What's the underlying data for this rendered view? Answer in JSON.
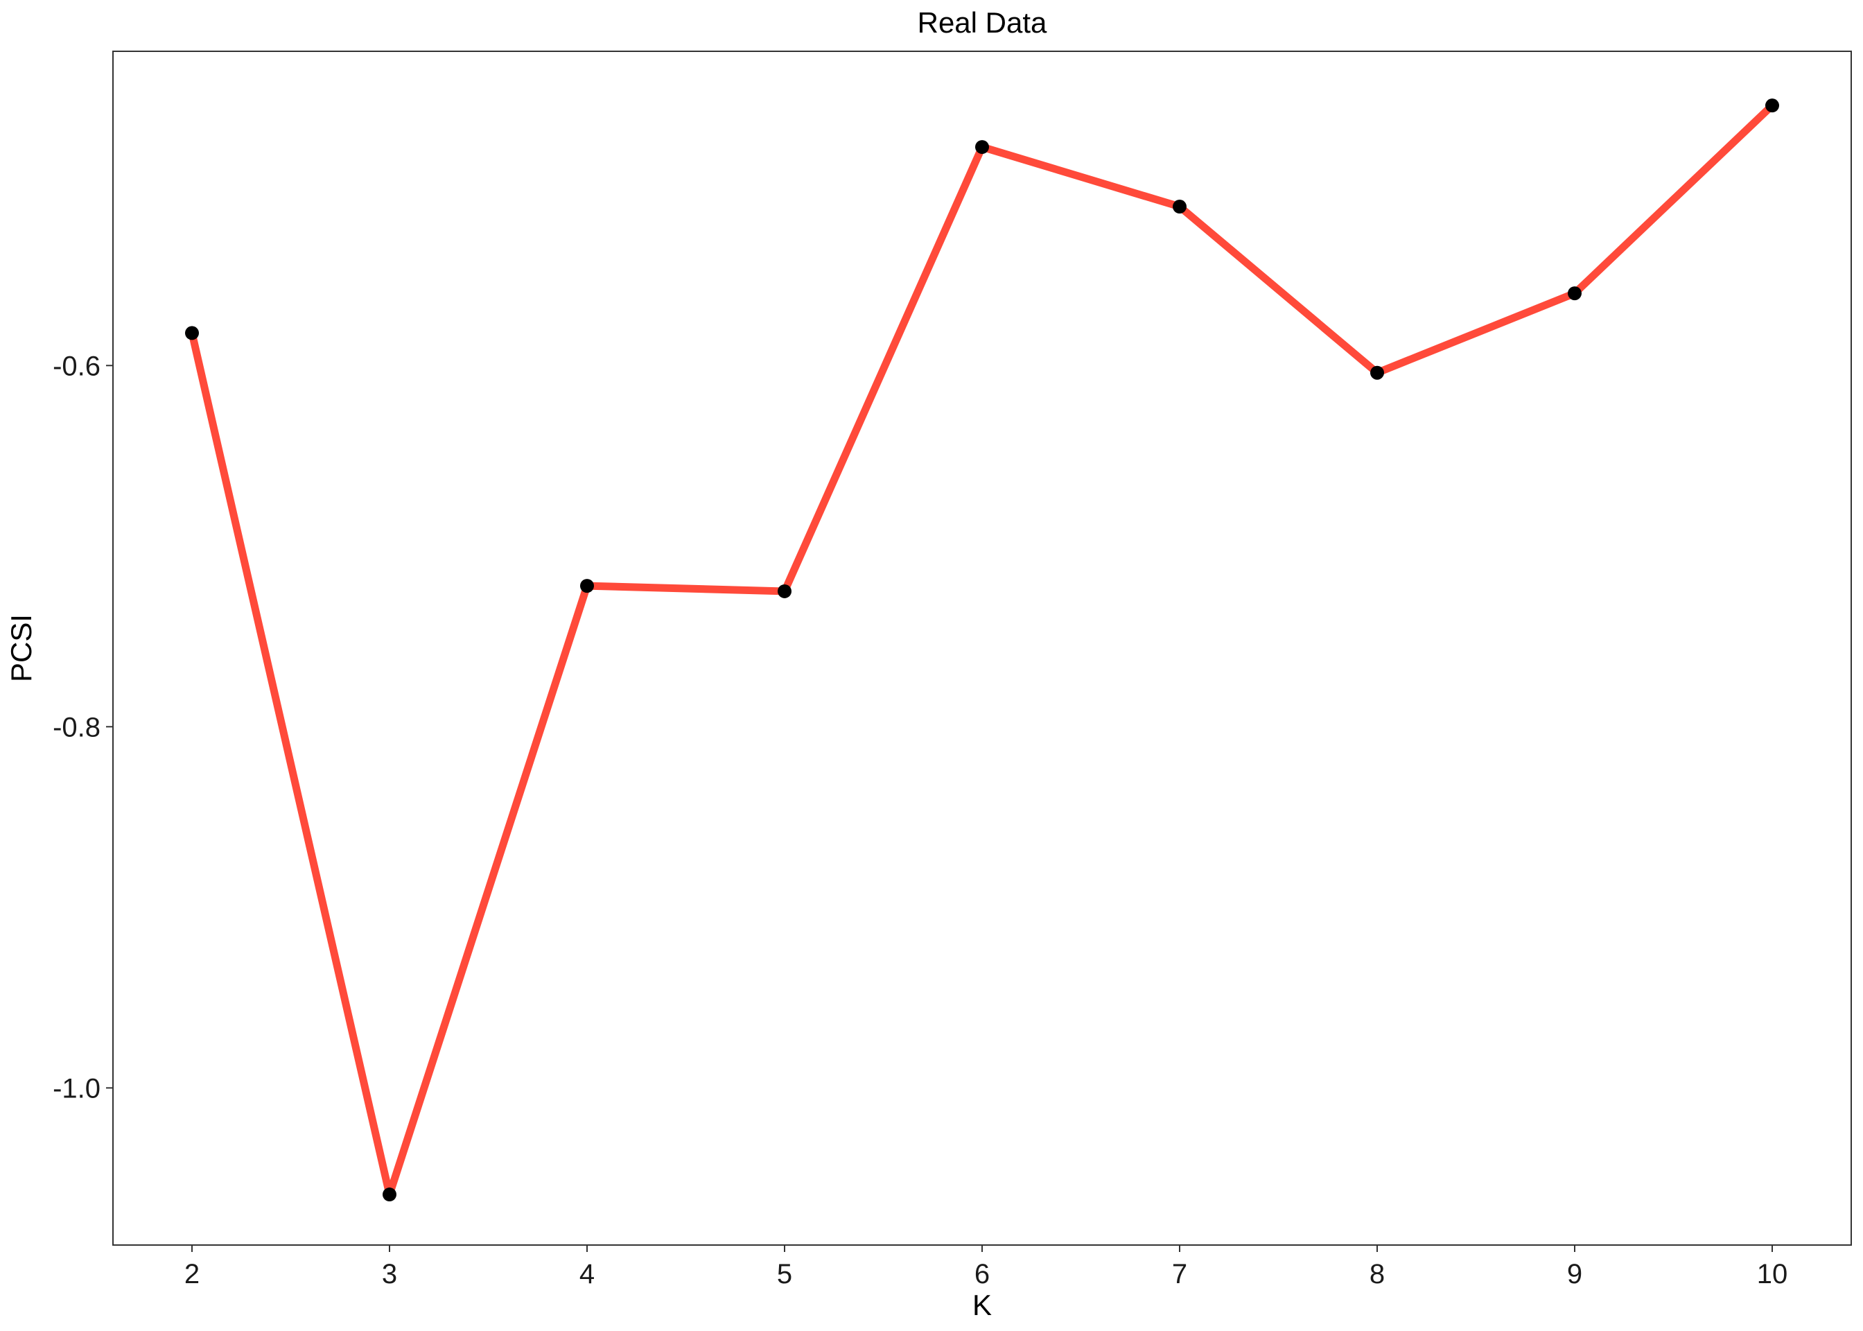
{
  "chart_data": {
    "type": "line",
    "title": "Real Data",
    "xlabel": "K",
    "ylabel": "PCSI",
    "x": [
      2,
      3,
      4,
      5,
      6,
      7,
      8,
      9,
      10
    ],
    "y": [
      -0.582,
      -1.059,
      -0.722,
      -0.725,
      -0.479,
      -0.512,
      -0.604,
      -0.56,
      -0.456
    ],
    "xlim": [
      1.6,
      10.4
    ],
    "ylim": [
      -1.087,
      -0.426
    ],
    "xticks": [
      2,
      3,
      4,
      5,
      6,
      7,
      8,
      9,
      10
    ],
    "yticks": [
      -1.0,
      -0.8,
      -0.6
    ],
    "ytick_labels": [
      "-1.0",
      "-0.8",
      "-0.6"
    ],
    "grid": false,
    "line_color": "#ff4a3a",
    "point_color": "#000000"
  }
}
